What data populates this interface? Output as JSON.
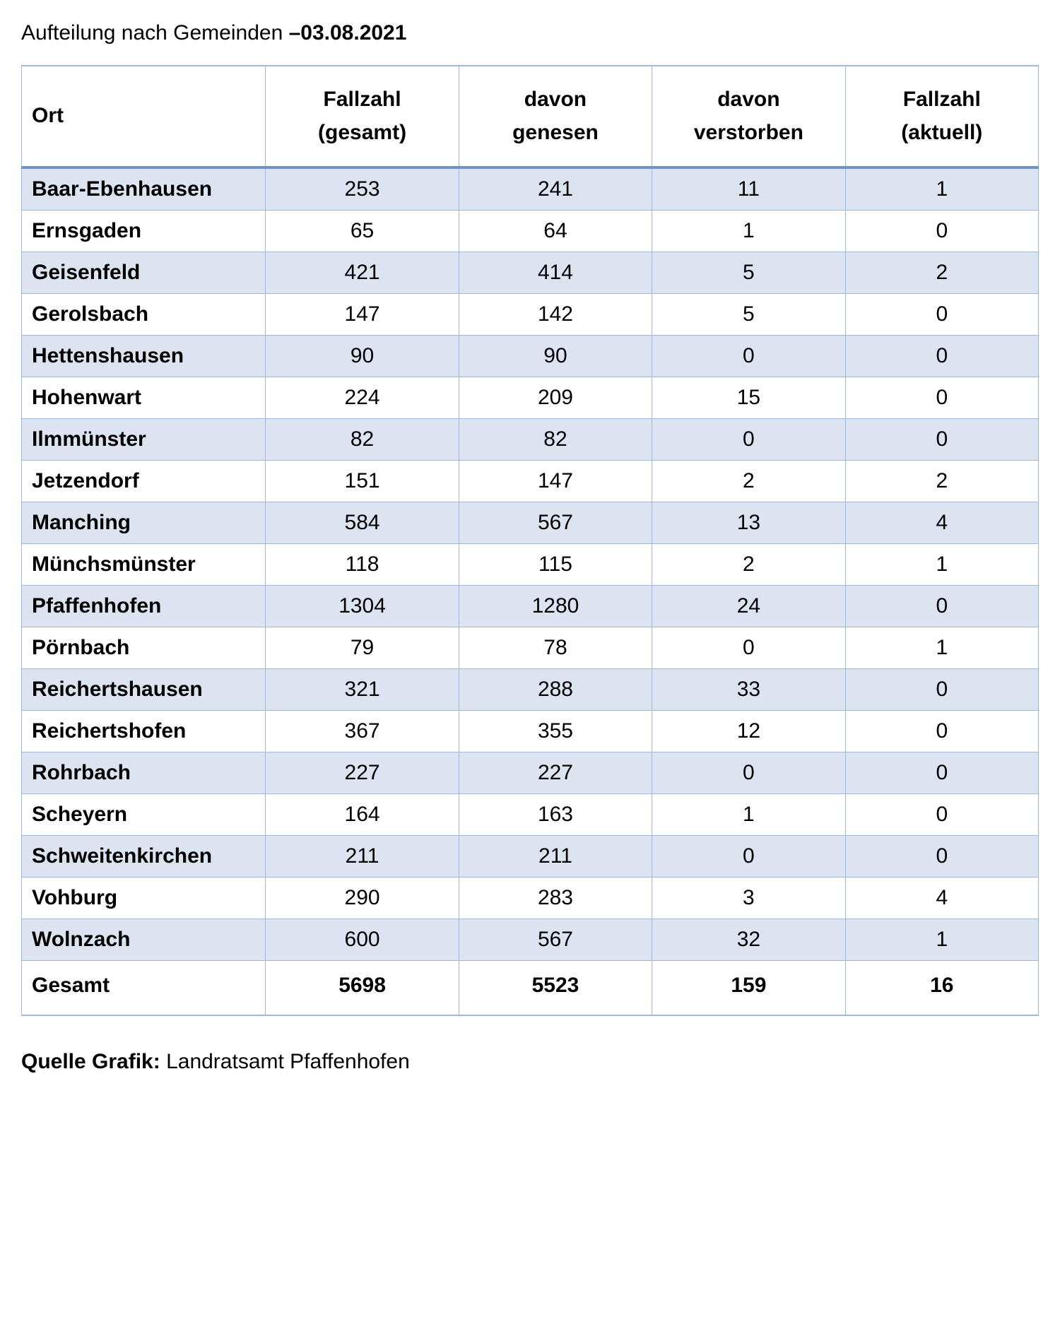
{
  "title": {
    "prefix": "Aufteilung nach Gemeinden ",
    "dash": "–",
    "date": "03.08.2021"
  },
  "table": {
    "type": "table",
    "header_fontsize": 30,
    "cell_fontsize": 30,
    "border_color": "#9fb9d8",
    "header_underline_color": "#6f94c2",
    "row_shade_color": "#dbe4f0",
    "row_plain_color": "#ffffff",
    "columns": [
      {
        "key": "ort",
        "line1": "",
        "line2": "Ort",
        "align": "left"
      },
      {
        "key": "gesamt",
        "line1": "Fallzahl",
        "line2": "(gesamt)",
        "align": "center"
      },
      {
        "key": "genesen",
        "line1": "davon",
        "line2": "genesen",
        "align": "center"
      },
      {
        "key": "verstorben",
        "line1": "davon",
        "line2": "verstorben",
        "align": "center"
      },
      {
        "key": "aktuell",
        "line1": "Fallzahl",
        "line2": "(aktuell)",
        "align": "center"
      }
    ],
    "rows": [
      {
        "ort": "Baar-Ebenhausen",
        "gesamt": "253",
        "genesen": "241",
        "verstorben": "11",
        "aktuell": "1"
      },
      {
        "ort": "Ernsgaden",
        "gesamt": "65",
        "genesen": "64",
        "verstorben": "1",
        "aktuell": "0"
      },
      {
        "ort": "Geisenfeld",
        "gesamt": "421",
        "genesen": "414",
        "verstorben": "5",
        "aktuell": "2"
      },
      {
        "ort": "Gerolsbach",
        "gesamt": "147",
        "genesen": "142",
        "verstorben": "5",
        "aktuell": "0"
      },
      {
        "ort": "Hettenshausen",
        "gesamt": "90",
        "genesen": "90",
        "verstorben": "0",
        "aktuell": "0"
      },
      {
        "ort": "Hohenwart",
        "gesamt": "224",
        "genesen": "209",
        "verstorben": "15",
        "aktuell": "0"
      },
      {
        "ort": "Ilmmünster",
        "gesamt": "82",
        "genesen": "82",
        "verstorben": "0",
        "aktuell": "0"
      },
      {
        "ort": "Jetzendorf",
        "gesamt": "151",
        "genesen": "147",
        "verstorben": "2",
        "aktuell": "2"
      },
      {
        "ort": "Manching",
        "gesamt": "584",
        "genesen": "567",
        "verstorben": "13",
        "aktuell": "4"
      },
      {
        "ort": "Münchsmünster",
        "gesamt": "118",
        "genesen": "115",
        "verstorben": "2",
        "aktuell": "1"
      },
      {
        "ort": "Pfaffenhofen",
        "gesamt": "1304",
        "genesen": "1280",
        "verstorben": "24",
        "aktuell": "0"
      },
      {
        "ort": "Pörnbach",
        "gesamt": "79",
        "genesen": "78",
        "verstorben": "0",
        "aktuell": "1"
      },
      {
        "ort": "Reichertshausen",
        "gesamt": "321",
        "genesen": "288",
        "verstorben": "33",
        "aktuell": "0"
      },
      {
        "ort": "Reichertshofen",
        "gesamt": "367",
        "genesen": "355",
        "verstorben": "12",
        "aktuell": "0"
      },
      {
        "ort": "Rohrbach",
        "gesamt": "227",
        "genesen": "227",
        "verstorben": "0",
        "aktuell": "0"
      },
      {
        "ort": "Scheyern",
        "gesamt": "164",
        "genesen": "163",
        "verstorben": "1",
        "aktuell": "0"
      },
      {
        "ort": "Schweitenkirchen",
        "gesamt": "211",
        "genesen": "211",
        "verstorben": "0",
        "aktuell": "0"
      },
      {
        "ort": "Vohburg",
        "gesamt": "290",
        "genesen": "283",
        "verstorben": "3",
        "aktuell": "4"
      },
      {
        "ort": "Wolnzach",
        "gesamt": "600",
        "genesen": "567",
        "verstorben": "32",
        "aktuell": "1"
      }
    ],
    "total": {
      "ort": "Gesamt",
      "gesamt": "5698",
      "genesen": "5523",
      "verstorben": "159",
      "aktuell": "16"
    }
  },
  "source": {
    "label": "Quelle Grafik:",
    "value": " Landratsamt Pfaffenhofen"
  }
}
